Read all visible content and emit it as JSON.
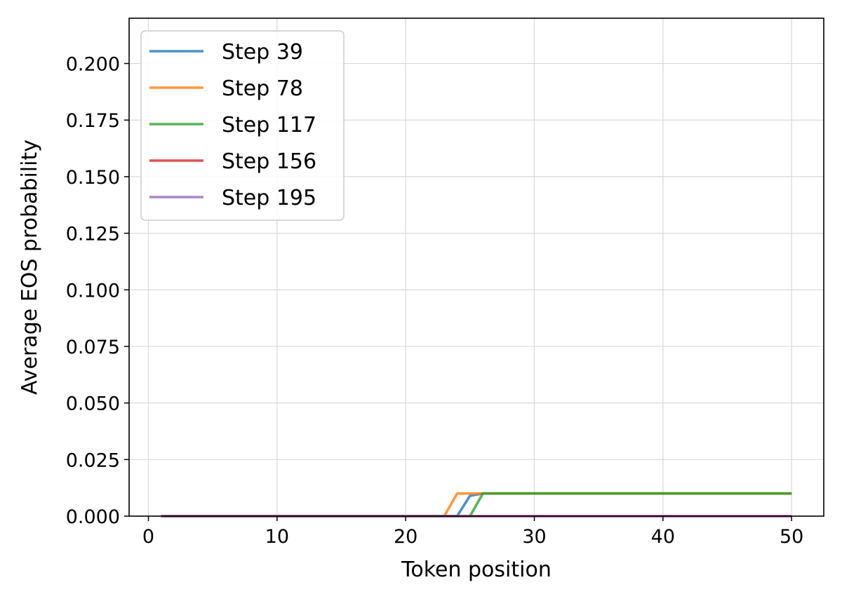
{
  "chart_data": {
    "type": "line",
    "title": "",
    "xlabel": "Token position",
    "ylabel": "Average EOS probability",
    "xlim": [
      -1.5,
      52.5
    ],
    "ylim": [
      0,
      0.22
    ],
    "xticks": [
      0,
      10,
      20,
      30,
      40,
      50
    ],
    "yticks": [
      0.0,
      0.025,
      0.05,
      0.075,
      0.1,
      0.125,
      0.15,
      0.175,
      0.2
    ],
    "xtick_labels": [
      "0",
      "10",
      "20",
      "30",
      "40",
      "50"
    ],
    "ytick_labels": [
      "0.000",
      "0.025",
      "0.050",
      "0.075",
      "0.100",
      "0.125",
      "0.150",
      "0.175",
      "0.200"
    ],
    "grid": true,
    "legend_position": "top-left",
    "series": [
      {
        "name": "Step 39",
        "color": "#1f77b4",
        "points": [
          [
            1,
            0
          ],
          [
            24,
            0
          ],
          [
            25,
            0.009
          ],
          [
            26,
            0.01
          ],
          [
            50,
            0.01
          ]
        ]
      },
      {
        "name": "Step 78",
        "color": "#ff7f0e",
        "points": [
          [
            1,
            0
          ],
          [
            23,
            0
          ],
          [
            24,
            0.01
          ],
          [
            50,
            0.01
          ]
        ]
      },
      {
        "name": "Step 117",
        "color": "#2ca02c",
        "points": [
          [
            1,
            0
          ],
          [
            25,
            0
          ],
          [
            26,
            0.01
          ],
          [
            50,
            0.01
          ]
        ]
      },
      {
        "name": "Step 156",
        "color": "#d62728",
        "points": [
          [
            1,
            0
          ],
          [
            50,
            0
          ]
        ]
      },
      {
        "name": "Step 195",
        "color": "#9467bd",
        "points": [
          [
            1,
            0
          ],
          [
            50,
            0
          ]
        ]
      }
    ]
  }
}
